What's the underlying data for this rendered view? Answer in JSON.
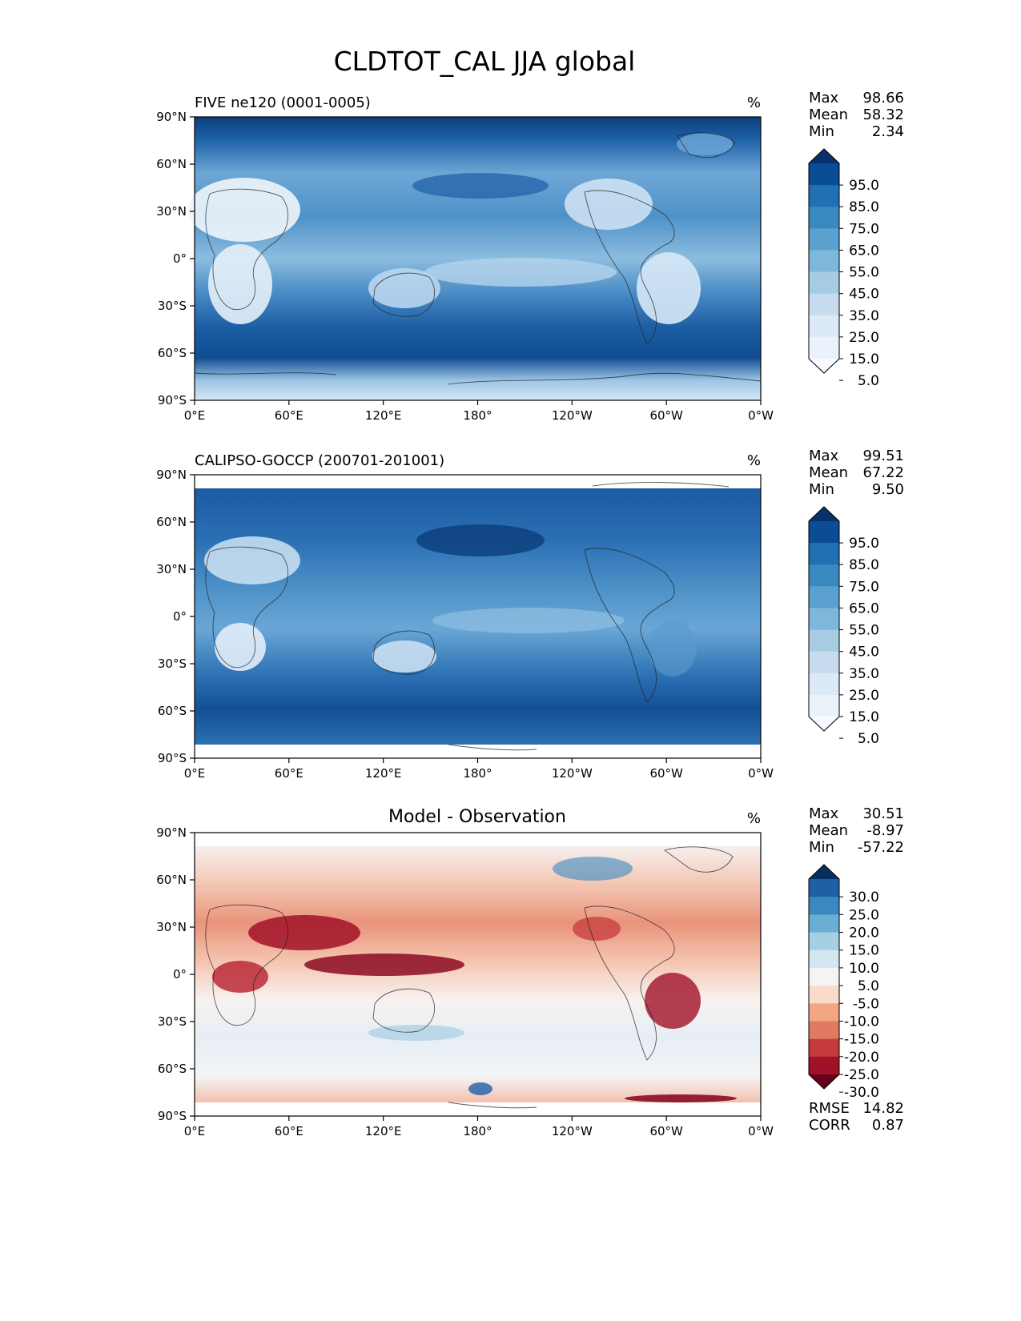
{
  "figure_title": "CLDTOT_CAL JJA global",
  "chart_data": [
    {
      "type": "heatmap",
      "title": "FIVE ne120 (0001-0005)",
      "units": "%",
      "stats": [
        {
          "label": "Max",
          "value": "98.66"
        },
        {
          "label": "Mean",
          "value": "58.32"
        },
        {
          "label": "Min",
          "value": "2.34"
        }
      ],
      "x_ticks": [
        "0°E",
        "60°E",
        "120°E",
        "180°",
        "120°W",
        "60°W",
        "0°W"
      ],
      "y_ticks": [
        "90°N",
        "60°N",
        "30°N",
        "0°",
        "30°S",
        "60°S",
        "90°S"
      ],
      "xlim": [
        0,
        360
      ],
      "ylim": [
        -90,
        90
      ],
      "colorbar": {
        "levels": [
          "95.0",
          "85.0",
          "75.0",
          "65.0",
          "55.0",
          "45.0",
          "35.0",
          "25.0",
          "15.0",
          "5.0"
        ],
        "colors": [
          "#08306b",
          "#0b4d94",
          "#2070b4",
          "#3989c1",
          "#5aa1cf",
          "#7db8da",
          "#a5cce3",
          "#c7dcef",
          "#dce9f6",
          "#eaf2fb",
          "#f7fbff"
        ]
      },
      "footer": []
    },
    {
      "type": "heatmap",
      "title": "CALIPSO-GOCCP (200701-201001)",
      "units": "%",
      "stats": [
        {
          "label": "Max",
          "value": "99.51"
        },
        {
          "label": "Mean",
          "value": "67.22"
        },
        {
          "label": "Min",
          "value": "9.50"
        }
      ],
      "x_ticks": [
        "0°E",
        "60°E",
        "120°E",
        "180°",
        "120°W",
        "60°W",
        "0°W"
      ],
      "y_ticks": [
        "90°N",
        "60°N",
        "30°N",
        "0°",
        "30°S",
        "60°S",
        "90°S"
      ],
      "xlim": [
        0,
        360
      ],
      "ylim": [
        -90,
        90
      ],
      "colorbar": {
        "levels": [
          "95.0",
          "85.0",
          "75.0",
          "65.0",
          "55.0",
          "45.0",
          "35.0",
          "25.0",
          "15.0",
          "5.0"
        ],
        "colors": [
          "#08306b",
          "#0b4d94",
          "#2070b4",
          "#3989c1",
          "#5aa1cf",
          "#7db8da",
          "#a5cce3",
          "#c7dcef",
          "#dce9f6",
          "#eaf2fb",
          "#f7fbff"
        ]
      },
      "footer": []
    },
    {
      "type": "heatmap",
      "title": "Model - Observation",
      "units": "%",
      "stats": [
        {
          "label": "Max",
          "value": "30.51"
        },
        {
          "label": "Mean",
          "value": "-8.97"
        },
        {
          "label": "Min",
          "value": "-57.22"
        }
      ],
      "x_ticks": [
        "0°E",
        "60°E",
        "120°E",
        "180°",
        "120°W",
        "60°W",
        "0°W"
      ],
      "y_ticks": [
        "90°N",
        "60°N",
        "30°N",
        "0°",
        "30°S",
        "60°S",
        "90°S"
      ],
      "xlim": [
        0,
        360
      ],
      "ylim": [
        -90,
        90
      ],
      "colorbar": {
        "levels": [
          "30.0",
          "25.0",
          "20.0",
          "15.0",
          "10.0",
          "5.0",
          "-5.0",
          "-10.0",
          "-15.0",
          "-20.0",
          "-25.0",
          "-30.0"
        ],
        "colors": [
          "#053061",
          "#1f5fa6",
          "#3a88c0",
          "#6aaed3",
          "#a6cfe3",
          "#d3e6f0",
          "#f4f4f4",
          "#fadbc9",
          "#f4a582",
          "#e07b62",
          "#c53b3c",
          "#a11228",
          "#67001f"
        ]
      },
      "footer": [
        {
          "label": "RMSE",
          "value": "14.82"
        },
        {
          "label": "CORR",
          "value": "0.87"
        }
      ]
    }
  ]
}
